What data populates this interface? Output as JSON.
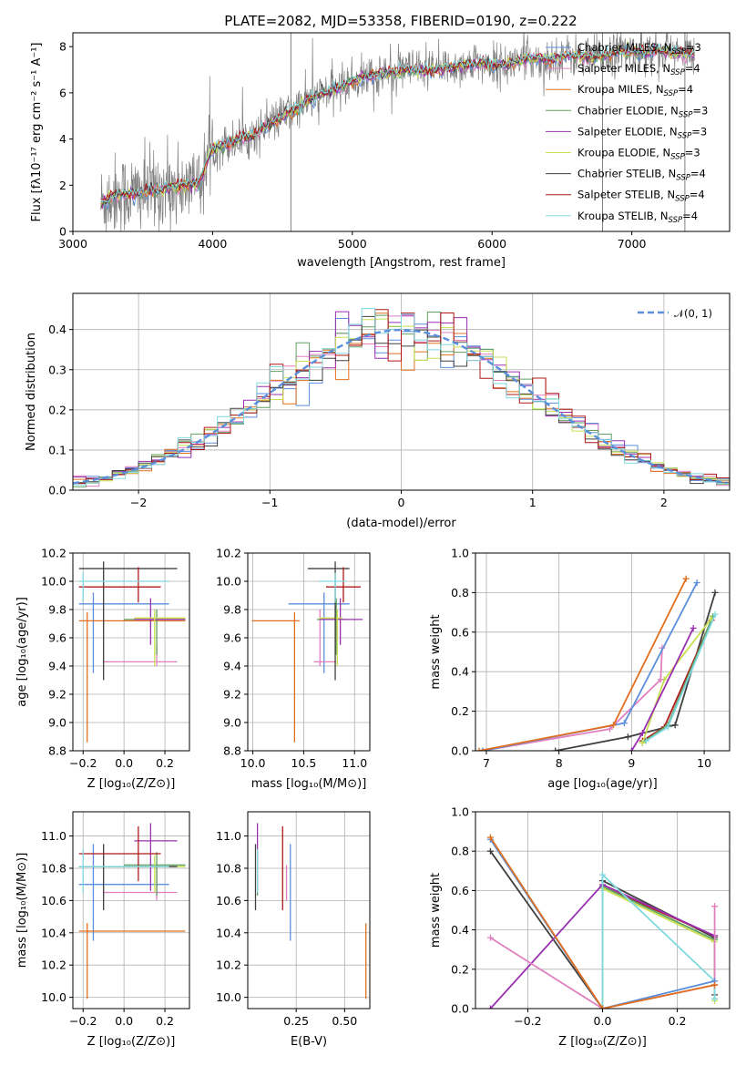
{
  "chart_data": [
    {
      "type": "line",
      "title": "PLATE=2082, MJD=53358, FIBERID=0190, z=0.222",
      "xlabel": "wavelength [Angstrom, rest frame]",
      "ylabel": "Flux [fλ10⁻¹⁷ erg cm⁻² s⁻¹ A⁻¹]",
      "xlim": [
        3000,
        7700
      ],
      "ylim": [
        0,
        8.6
      ],
      "xticks": [
        3000,
        4000,
        5000,
        6000,
        7000
      ],
      "yticks": [
        0,
        2,
        4,
        6,
        8
      ],
      "legend_position": "upper-right",
      "series": [
        {
          "name": "Chabrier MILES, N_SSP=3",
          "color": "#5a8fdb"
        },
        {
          "name": "Salpeter MILES, N_SSP=4",
          "color": "#e080c0"
        },
        {
          "name": "Kroupa MILES, N_SSP=4",
          "color": "#e07020"
        },
        {
          "name": "Chabrier ELODIE, N_SSP=3",
          "color": "#60a060"
        },
        {
          "name": "Salpeter ELODIE, N_SSP=3",
          "color": "#9a30b0"
        },
        {
          "name": "Kroupa ELODIE, N_SSP=3",
          "color": "#c8e050"
        },
        {
          "name": "Chabrier STELIB, N_SSP=4",
          "color": "#404040"
        },
        {
          "name": "Salpeter STELIB, N_SSP=4",
          "color": "#b01818"
        },
        {
          "name": "Kroupa STELIB, N_SSP=4",
          "color": "#80d8e0"
        }
      ],
      "model_continuum": {
        "x": [
          3200,
          3300,
          3400,
          3500,
          3600,
          3700,
          3800,
          3900,
          4000,
          4100,
          4200,
          4300,
          4400,
          4500,
          4600,
          4700,
          4800,
          4900,
          5000,
          5100,
          5200,
          5300,
          5400,
          5500,
          5600,
          5700,
          5800,
          5900,
          6000,
          6100,
          6200,
          6300,
          6400,
          6500,
          6600,
          6700,
          6800,
          6900,
          7000,
          7100,
          7200,
          7300,
          7400
        ],
        "y": [
          1.2,
          1.6,
          1.6,
          1.7,
          1.8,
          1.9,
          2.0,
          2.1,
          3.6,
          3.8,
          4.0,
          4.2,
          4.6,
          5.0,
          5.3,
          5.7,
          6.0,
          6.2,
          6.5,
          6.7,
          6.8,
          6.9,
          7.0,
          6.9,
          7.0,
          7.1,
          7.2,
          7.3,
          7.2,
          7.2,
          7.4,
          7.5,
          7.4,
          7.6,
          7.6,
          7.5,
          7.6,
          7.8,
          7.8,
          7.7,
          7.9,
          7.7,
          7.7
        ]
      }
    },
    {
      "type": "bar",
      "xlabel": "(data-model)/error",
      "ylabel": "Normed distribution",
      "xlim": [
        -2.5,
        2.5
      ],
      "ylim": [
        0,
        0.49
      ],
      "xticks": [
        -2,
        -1,
        0,
        1,
        2
      ],
      "yticks": [
        0.0,
        0.1,
        0.2,
        0.3,
        0.4
      ],
      "legend": {
        "label": "𝒩(0, 1)",
        "style": "dashed",
        "color": "#5a8fdb",
        "position": "upper-right"
      },
      "bin_width": 0.1,
      "gaussian": {
        "mean": 0,
        "sigma": 1
      }
    },
    {
      "type": "scatter",
      "xlabel": "Z [log₁₀(Z/Z⊙)]",
      "ylabel": "age  [log₁₀(age/yr)]",
      "xlim": [
        -0.25,
        0.32
      ],
      "ylim": [
        8.8,
        10.2
      ],
      "xticks": [
        -0.2,
        0.0,
        0.2
      ],
      "yticks": [
        8.8,
        9.0,
        9.2,
        9.4,
        9.6,
        9.8,
        10.0,
        10.2
      ],
      "points": [
        {
          "x": -0.15,
          "xlo": -0.22,
          "xhi": 0.22,
          "y": 9.84,
          "ylo": 9.35,
          "yhi": 9.92,
          "color": "#5a8fdb"
        },
        {
          "x": 0.16,
          "xlo": -0.1,
          "xhi": 0.26,
          "y": 9.43,
          "ylo": 9.4,
          "yhi": 9.55,
          "color": "#e080c0"
        },
        {
          "x": -0.18,
          "xlo": -0.22,
          "xhi": 0.3,
          "y": 9.72,
          "ylo": 8.86,
          "yhi": 9.78,
          "color": "#e07020"
        },
        {
          "x": 0.16,
          "xlo": 0.0,
          "xhi": 0.3,
          "y": 9.73,
          "ylo": 9.48,
          "yhi": 9.8,
          "color": "#60a060"
        },
        {
          "x": 0.13,
          "xlo": 0.05,
          "xhi": 0.3,
          "y": 9.73,
          "ylo": 9.55,
          "yhi": 9.88,
          "color": "#9a30b0"
        },
        {
          "x": 0.15,
          "xlo": 0.05,
          "xhi": 0.3,
          "y": 9.74,
          "ylo": 9.4,
          "yhi": 9.8,
          "color": "#c8e050"
        },
        {
          "x": -0.1,
          "xlo": -0.22,
          "xhi": 0.26,
          "y": 10.09,
          "ylo": 9.3,
          "yhi": 10.14,
          "color": "#404040"
        },
        {
          "x": 0.07,
          "xlo": -0.22,
          "xhi": 0.18,
          "y": 9.96,
          "ylo": 9.85,
          "yhi": 10.1,
          "color": "#b01818"
        },
        {
          "x": -0.2,
          "xlo": -0.22,
          "xhi": 0.22,
          "y": 10.0,
          "ylo": 9.85,
          "yhi": 10.06,
          "color": "#80d8e0"
        }
      ]
    },
    {
      "type": "scatter",
      "xlabel": "mass [log₁₀(M/M⊙)]",
      "ylabel": "",
      "xlim": [
        9.95,
        11.15
      ],
      "ylim": [
        8.8,
        10.2
      ],
      "xticks": [
        10.0,
        10.5,
        11.0
      ],
      "yticks": [
        8.8,
        9.0,
        9.2,
        9.4,
        9.6,
        9.8,
        10.0,
        10.2
      ],
      "points": [
        {
          "x": 10.7,
          "xlo": 10.35,
          "xhi": 10.95,
          "y": 9.84,
          "ylo": 9.35,
          "yhi": 9.92,
          "color": "#5a8fdb"
        },
        {
          "x": 10.66,
          "xlo": 10.6,
          "xhi": 10.82,
          "y": 9.43,
          "ylo": 9.4,
          "yhi": 9.8,
          "color": "#e080c0"
        },
        {
          "x": 10.41,
          "xlo": 9.99,
          "xhi": 10.46,
          "y": 9.72,
          "ylo": 8.86,
          "yhi": 9.78,
          "color": "#e07020"
        },
        {
          "x": 10.82,
          "xlo": 10.63,
          "xhi": 10.9,
          "y": 9.73,
          "ylo": 9.48,
          "yhi": 9.88,
          "color": "#60a060"
        },
        {
          "x": 10.86,
          "xlo": 10.66,
          "xhi": 11.08,
          "y": 9.73,
          "ylo": 9.55,
          "yhi": 9.88,
          "color": "#9a30b0"
        },
        {
          "x": 10.83,
          "xlo": 10.65,
          "xhi": 10.88,
          "y": 9.74,
          "ylo": 9.4,
          "yhi": 9.8,
          "color": "#c8e050"
        },
        {
          "x": 10.81,
          "xlo": 10.54,
          "xhi": 10.95,
          "y": 10.09,
          "ylo": 9.3,
          "yhi": 10.14,
          "color": "#404040"
        },
        {
          "x": 10.89,
          "xlo": 10.72,
          "xhi": 11.06,
          "y": 9.96,
          "ylo": 9.85,
          "yhi": 10.1,
          "color": "#b01818"
        },
        {
          "x": 10.81,
          "xlo": 10.65,
          "xhi": 10.92,
          "y": 10.0,
          "ylo": 9.85,
          "yhi": 10.06,
          "color": "#80d8e0"
        }
      ]
    },
    {
      "type": "line",
      "xlabel": "age  [log₁₀(age/yr)]",
      "ylabel": "mass weight",
      "xlim": [
        6.85,
        10.35
      ],
      "ylim": [
        0.0,
        1.0
      ],
      "xticks": [
        7,
        8,
        9,
        10
      ],
      "yticks": [
        0.0,
        0.2,
        0.4,
        0.6,
        0.8,
        1.0
      ],
      "series": [
        {
          "color": "#404040",
          "x": [
            7.95,
            8.95,
            9.6,
            10.15
          ],
          "y": [
            0.0,
            0.07,
            0.13,
            0.8
          ]
        },
        {
          "color": "#b01818",
          "x": [
            9.15,
            9.45,
            10.1
          ],
          "y": [
            0.05,
            0.12,
            0.66
          ]
        },
        {
          "color": "#60a060",
          "x": [
            9.15,
            9.5,
            10.12
          ],
          "y": [
            0.04,
            0.13,
            0.68
          ]
        },
        {
          "color": "#c8e050",
          "x": [
            9.15,
            9.45,
            10.1
          ],
          "y": [
            0.04,
            0.36,
            0.67
          ]
        },
        {
          "color": "#9a30b0",
          "x": [
            9.0,
            9.15,
            9.85
          ],
          "y": [
            0.0,
            0.09,
            0.62
          ]
        },
        {
          "color": "#80d8e0",
          "x": [
            9.2,
            9.5,
            10.15
          ],
          "y": [
            0.05,
            0.12,
            0.69
          ]
        },
        {
          "color": "#e080c0",
          "x": [
            6.95,
            8.7,
            9.4,
            9.42
          ],
          "y": [
            0.0,
            0.11,
            0.36,
            0.52
          ]
        },
        {
          "color": "#5a8fdb",
          "x": [
            6.95,
            8.9,
            9.9
          ],
          "y": [
            0.0,
            0.14,
            0.85
          ]
        },
        {
          "color": "#e07020",
          "x": [
            6.9,
            8.75,
            9.75
          ],
          "y": [
            0.0,
            0.13,
            0.87
          ]
        }
      ]
    },
    {
      "type": "scatter",
      "xlabel": "Z [log₁₀(Z/Z⊙)]",
      "ylabel": "mass [log₁₀(M/M⊙)]",
      "xlim": [
        -0.25,
        0.32
      ],
      "ylim": [
        9.93,
        11.15
      ],
      "xticks": [
        -0.2,
        0.0,
        0.2
      ],
      "yticks": [
        10.0,
        10.2,
        10.4,
        10.6,
        10.8,
        11.0
      ],
      "points": [
        {
          "x": -0.15,
          "xlo": -0.22,
          "xhi": 0.22,
          "y": 10.7,
          "ylo": 10.35,
          "yhi": 10.95,
          "color": "#5a8fdb"
        },
        {
          "x": 0.16,
          "xlo": -0.1,
          "xhi": 0.26,
          "y": 10.65,
          "ylo": 10.6,
          "yhi": 10.82,
          "color": "#e080c0"
        },
        {
          "x": -0.18,
          "xlo": -0.22,
          "xhi": 0.3,
          "y": 10.41,
          "ylo": 9.99,
          "yhi": 10.46,
          "color": "#e07020"
        },
        {
          "x": 0.16,
          "xlo": 0.0,
          "xhi": 0.3,
          "y": 10.82,
          "ylo": 10.63,
          "yhi": 10.9,
          "color": "#60a060"
        },
        {
          "x": 0.13,
          "xlo": 0.05,
          "xhi": 0.26,
          "y": 10.97,
          "ylo": 10.66,
          "yhi": 11.08,
          "color": "#9a30b0"
        },
        {
          "x": 0.15,
          "xlo": 0.0,
          "xhi": 0.3,
          "y": 10.81,
          "ylo": 10.65,
          "yhi": 10.88,
          "color": "#c8e050"
        },
        {
          "x": -0.1,
          "xlo": -0.22,
          "xhi": 0.26,
          "y": 10.81,
          "ylo": 10.54,
          "yhi": 10.95,
          "color": "#404040"
        },
        {
          "x": 0.07,
          "xlo": -0.22,
          "xhi": 0.18,
          "y": 10.89,
          "ylo": 10.72,
          "yhi": 11.06,
          "color": "#b01818"
        },
        {
          "x": -0.2,
          "xlo": -0.22,
          "xhi": 0.22,
          "y": 10.81,
          "ylo": 10.65,
          "yhi": 10.92,
          "color": "#80d8e0"
        }
      ]
    },
    {
      "type": "scatter",
      "xlabel": "E(B-V)",
      "ylabel": "",
      "xlim": [
        0.0,
        0.63
      ],
      "ylim": [
        9.93,
        11.15
      ],
      "xticks": [
        0.25,
        0.5
      ],
      "yticks": [
        10.0,
        10.2,
        10.4,
        10.6,
        10.8,
        11.0
      ],
      "points": [
        {
          "x": 0.22,
          "y": 10.7,
          "ylo": 10.35,
          "yhi": 10.95,
          "color": "#5a8fdb"
        },
        {
          "x": 0.2,
          "y": 10.7,
          "ylo": 10.6,
          "yhi": 10.82,
          "color": "#e080c0"
        },
        {
          "x": 0.61,
          "y": 10.41,
          "ylo": 9.99,
          "yhi": 10.46,
          "color": "#e07020"
        },
        {
          "x": 0.05,
          "y": 10.82,
          "ylo": 10.63,
          "yhi": 10.9,
          "color": "#60a060"
        },
        {
          "x": 0.05,
          "y": 10.97,
          "ylo": 10.66,
          "yhi": 11.08,
          "color": "#9a30b0"
        },
        {
          "x": 0.05,
          "y": 10.81,
          "ylo": 10.65,
          "yhi": 10.88,
          "color": "#c8e050"
        },
        {
          "x": 0.04,
          "y": 10.81,
          "ylo": 10.54,
          "yhi": 10.95,
          "color": "#404040"
        },
        {
          "x": 0.18,
          "y": 10.89,
          "ylo": 10.54,
          "yhi": 11.06,
          "color": "#b01818"
        },
        {
          "x": 0.05,
          "y": 10.81,
          "ylo": 10.65,
          "yhi": 10.92,
          "color": "#80d8e0"
        }
      ]
    },
    {
      "type": "line",
      "xlabel": "Z [log₁₀(Z/Z⊙)]",
      "ylabel": "mass weight",
      "xlim": [
        -0.34,
        0.34
      ],
      "ylim": [
        0.0,
        1.0
      ],
      "xticks": [
        -0.2,
        0.0,
        0.2
      ],
      "yticks": [
        0.0,
        0.2,
        0.4,
        0.6,
        0.8,
        1.0
      ],
      "series": [
        {
          "color": "#404040",
          "x": [
            -0.3,
            0.0,
            0.0,
            0.3,
            0.3
          ],
          "y": [
            0.8,
            0.0,
            0.65,
            0.36,
            0.07
          ]
        },
        {
          "color": "#b01818",
          "x": [
            0.0,
            0.0,
            0.3,
            0.3
          ],
          "y": [
            0.0,
            0.62,
            0.37,
            0.12
          ]
        },
        {
          "color": "#60a060",
          "x": [
            0.0,
            0.0,
            0.3,
            0.3
          ],
          "y": [
            0.0,
            0.62,
            0.35,
            0.05
          ]
        },
        {
          "color": "#c8e050",
          "x": [
            0.0,
            0.0,
            0.3,
            0.3
          ],
          "y": [
            0.0,
            0.61,
            0.34,
            0.04
          ]
        },
        {
          "color": "#9a30b0",
          "x": [
            -0.3,
            0.0,
            0.3
          ],
          "y": [
            0.0,
            0.63,
            0.37
          ]
        },
        {
          "color": "#80d8e0",
          "x": [
            0.0,
            0.0,
            0.3,
            0.3
          ],
          "y": [
            0.0,
            0.68,
            0.14,
            0.05
          ]
        },
        {
          "color": "#e080c0",
          "x": [
            -0.3,
            0.0,
            0.3,
            0.3
          ],
          "y": [
            0.36,
            0.0,
            0.12,
            0.52
          ]
        },
        {
          "color": "#5a8fdb",
          "x": [
            -0.3,
            0.0,
            0.3
          ],
          "y": [
            0.86,
            0.0,
            0.14
          ]
        },
        {
          "color": "#e07020",
          "x": [
            -0.3,
            0.0,
            0.3
          ],
          "y": [
            0.87,
            0.0,
            0.12
          ]
        }
      ]
    }
  ]
}
